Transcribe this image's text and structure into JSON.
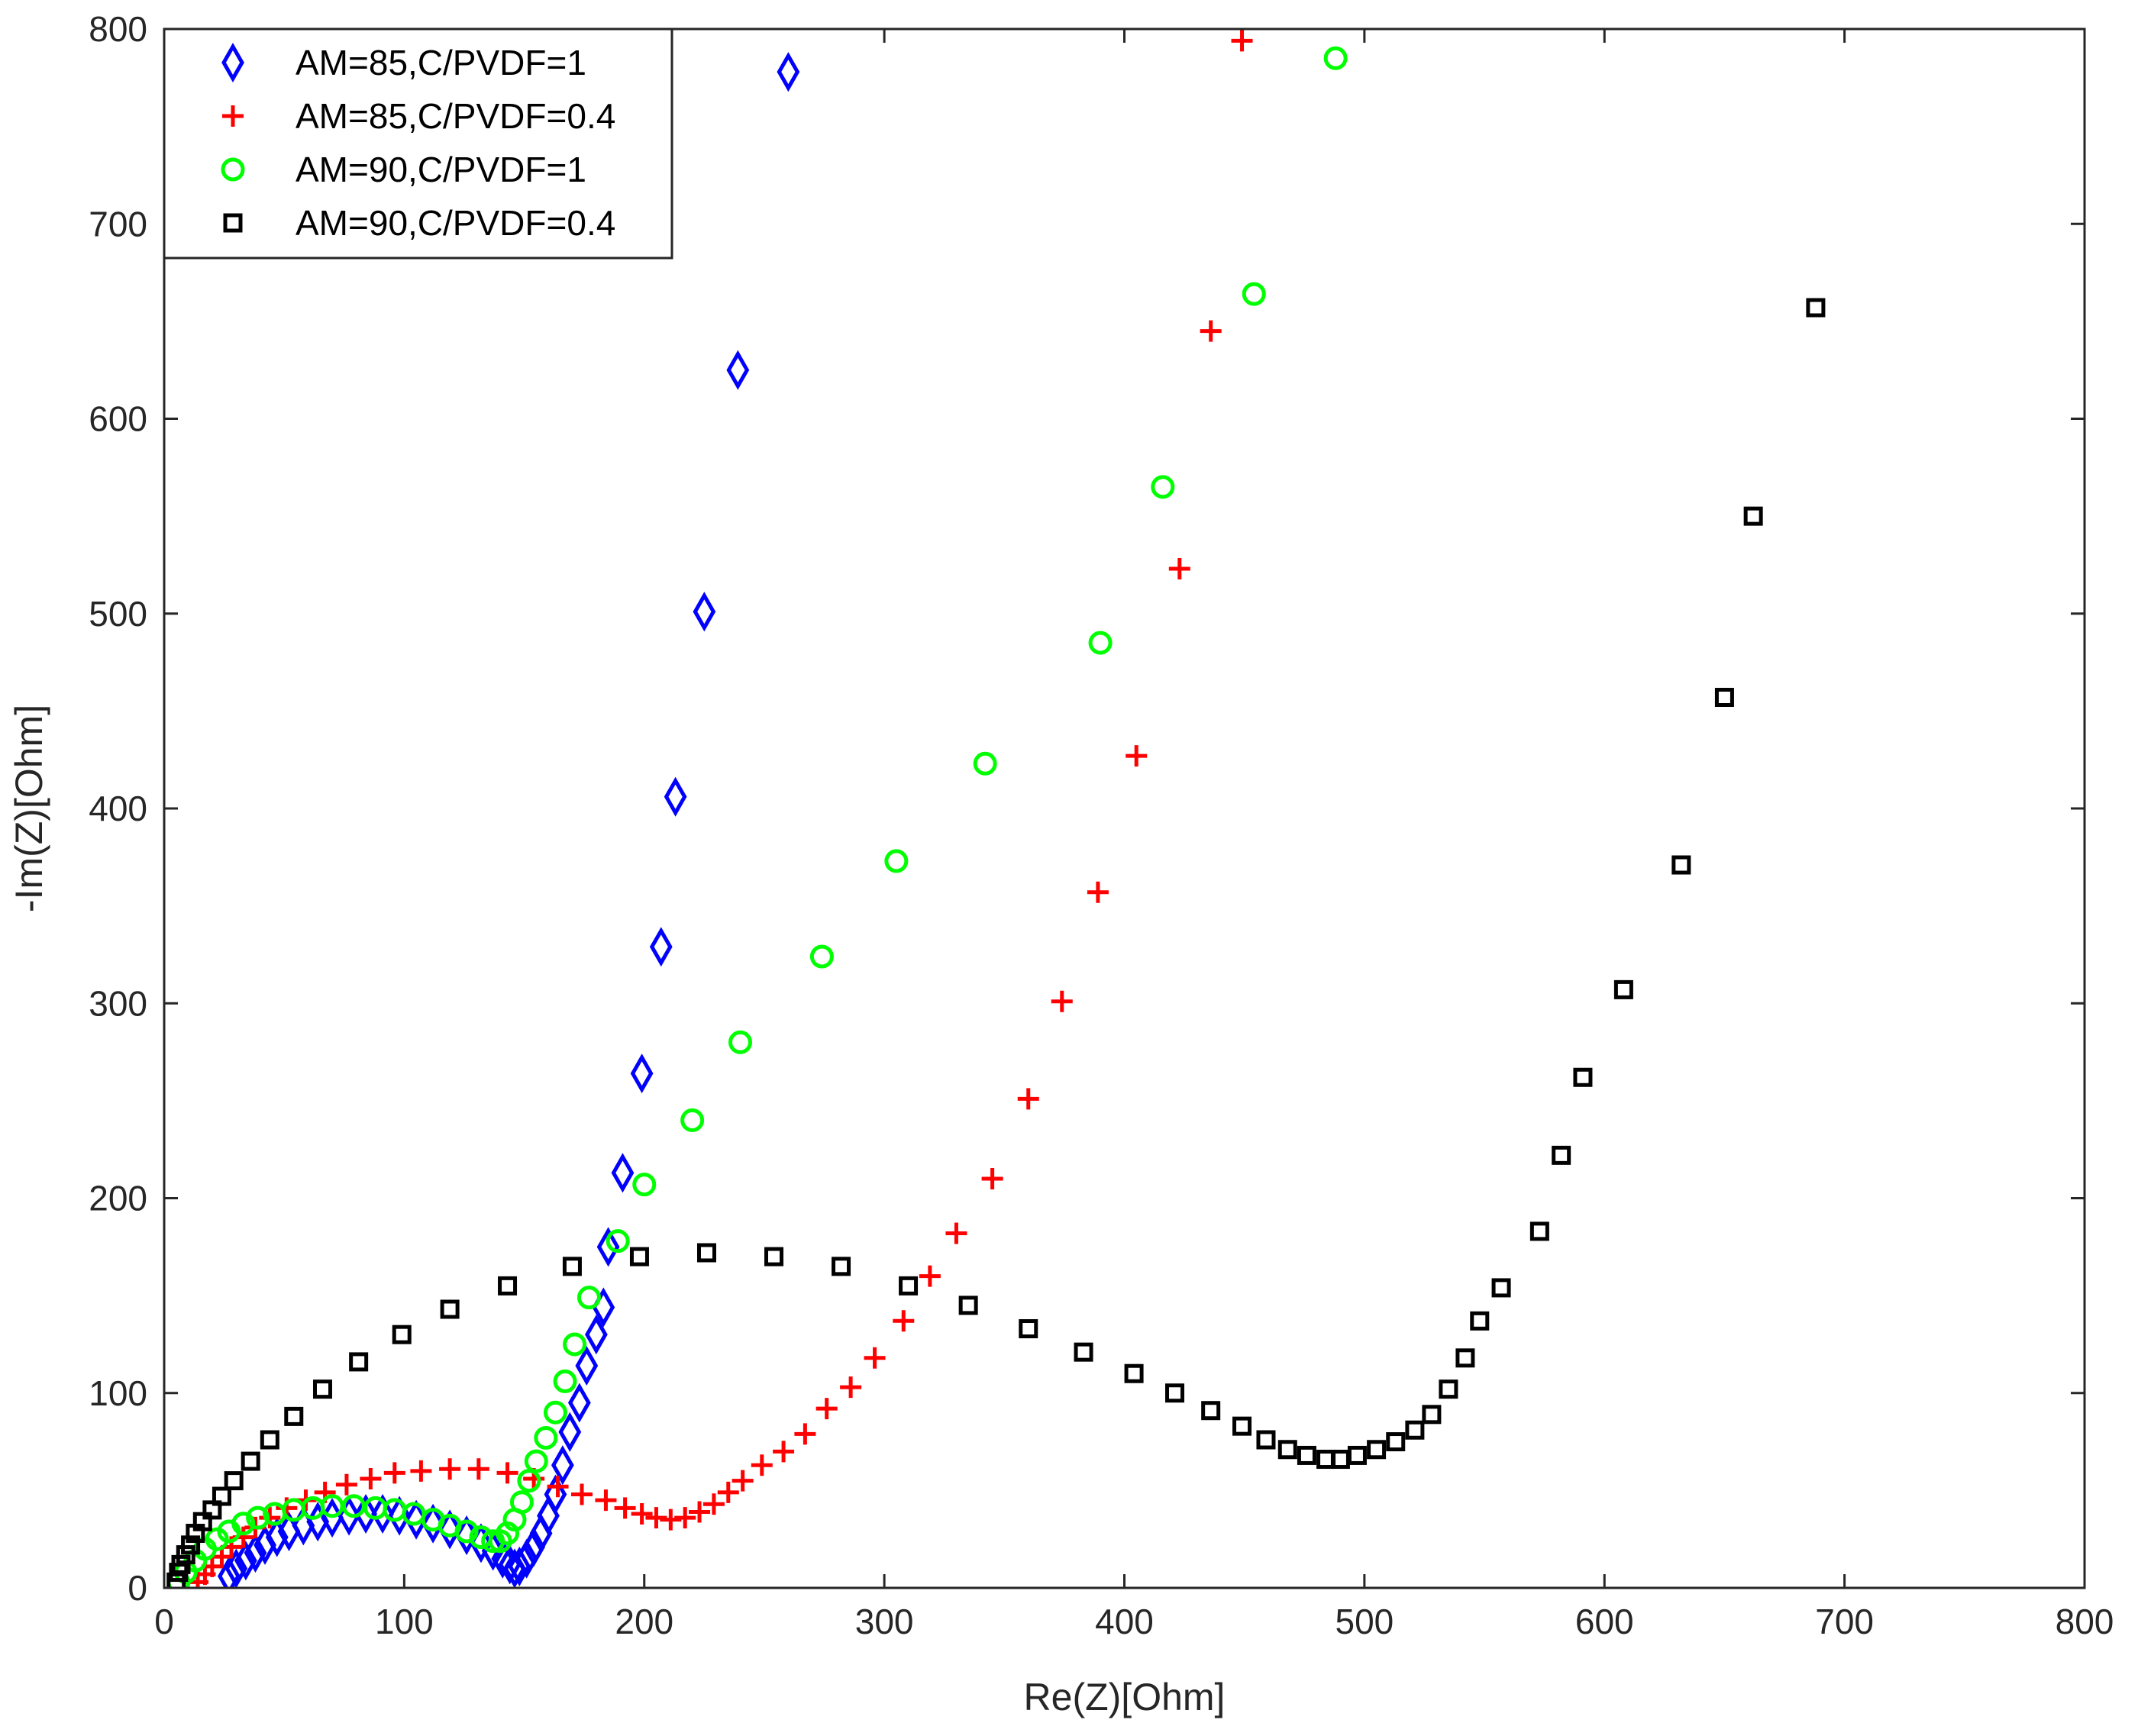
{
  "chart_data": {
    "type": "scatter",
    "title": "",
    "xlabel": "Re(Z)[Ohm]",
    "ylabel": "-Im(Z)[Ohm]",
    "xlim": [
      0,
      800
    ],
    "ylim": [
      0,
      800
    ],
    "xticks": [
      0,
      100,
      200,
      300,
      400,
      500,
      600,
      700,
      800
    ],
    "yticks": [
      0,
      100,
      200,
      300,
      400,
      500,
      600,
      700,
      800
    ],
    "xtick_labels": [
      "0",
      "100",
      "200",
      "300",
      "400",
      "500",
      "600",
      "700",
      "800"
    ],
    "ytick_labels": [
      "0",
      "100",
      "200",
      "300",
      "400",
      "500",
      "600",
      "700",
      "800"
    ],
    "grid": false,
    "legend_position": "top-left",
    "series": [
      {
        "name": "AM=85,C/PVDF=1",
        "marker": "diamond",
        "color": "#0000ff",
        "points": [
          [
            27,
            6
          ],
          [
            30,
            10
          ],
          [
            34,
            14
          ],
          [
            38,
            18
          ],
          [
            42,
            22
          ],
          [
            47,
            26
          ],
          [
            52,
            29
          ],
          [
            58,
            32
          ],
          [
            64,
            34
          ],
          [
            70,
            36
          ],
          [
            77,
            37
          ],
          [
            84,
            38
          ],
          [
            91,
            38
          ],
          [
            98,
            37
          ],
          [
            105,
            35
          ],
          [
            112,
            33
          ],
          [
            119,
            30
          ],
          [
            126,
            27
          ],
          [
            132,
            23
          ],
          [
            137,
            19
          ],
          [
            141,
            15
          ],
          [
            144,
            12
          ],
          [
            146,
            10
          ],
          [
            148,
            11
          ],
          [
            151,
            15
          ],
          [
            154,
            21
          ],
          [
            157,
            28
          ],
          [
            160,
            37
          ],
          [
            163,
            48
          ],
          [
            166,
            63
          ],
          [
            169,
            80
          ],
          [
            173,
            95
          ],
          [
            176,
            114
          ],
          [
            180,
            130
          ],
          [
            183,
            144
          ],
          [
            185,
            175
          ],
          [
            191,
            213
          ],
          [
            199,
            264
          ],
          [
            207,
            329
          ],
          [
            213,
            406
          ],
          [
            225,
            501
          ],
          [
            239,
            625
          ],
          [
            260,
            778
          ]
        ]
      },
      {
        "name": "AM=85,C/PVDF=0.4",
        "marker": "plus",
        "color": "#ff0000",
        "points": [
          [
            14,
            3
          ],
          [
            17,
            7
          ],
          [
            20,
            11
          ],
          [
            24,
            16
          ],
          [
            28,
            21
          ],
          [
            33,
            26
          ],
          [
            38,
            31
          ],
          [
            44,
            36
          ],
          [
            51,
            41
          ],
          [
            59,
            45
          ],
          [
            67,
            49
          ],
          [
            76,
            53
          ],
          [
            86,
            56
          ],
          [
            96,
            59
          ],
          [
            107,
            60
          ],
          [
            119,
            61
          ],
          [
            131,
            61
          ],
          [
            143,
            59
          ],
          [
            154,
            56
          ],
          [
            164,
            52
          ],
          [
            174,
            48
          ],
          [
            184,
            45
          ],
          [
            192,
            41
          ],
          [
            199,
            38
          ],
          [
            205,
            36
          ],
          [
            211,
            35
          ],
          [
            217,
            36
          ],
          [
            223,
            39
          ],
          [
            229,
            43
          ],
          [
            235,
            49
          ],
          [
            241,
            55
          ],
          [
            249,
            63
          ],
          [
            258,
            70
          ],
          [
            267,
            79
          ],
          [
            276,
            92
          ],
          [
            286,
            103
          ],
          [
            296,
            118
          ],
          [
            308,
            137
          ],
          [
            319,
            160
          ],
          [
            330,
            182
          ],
          [
            345,
            210
          ],
          [
            360,
            251
          ],
          [
            374,
            301
          ],
          [
            389,
            357
          ],
          [
            405,
            427
          ],
          [
            423,
            523
          ],
          [
            436,
            645
          ],
          [
            449,
            794
          ]
        ]
      },
      {
        "name": "AM=90,C/PVDF=1",
        "marker": "circle",
        "color": "#00ff00",
        "points": [
          [
            6,
            3
          ],
          [
            9,
            8
          ],
          [
            13,
            14
          ],
          [
            17,
            20
          ],
          [
            22,
            25
          ],
          [
            27,
            29
          ],
          [
            33,
            33
          ],
          [
            39,
            36
          ],
          [
            46,
            38
          ],
          [
            54,
            40
          ],
          [
            62,
            41
          ],
          [
            70,
            42
          ],
          [
            79,
            42
          ],
          [
            88,
            41
          ],
          [
            96,
            40
          ],
          [
            104,
            38
          ],
          [
            112,
            35
          ],
          [
            119,
            32
          ],
          [
            126,
            29
          ],
          [
            132,
            26
          ],
          [
            137,
            24
          ],
          [
            140,
            24
          ],
          [
            143,
            28
          ],
          [
            146,
            35
          ],
          [
            149,
            44
          ],
          [
            152,
            55
          ],
          [
            155,
            65
          ],
          [
            159,
            77
          ],
          [
            163,
            90
          ],
          [
            167,
            106
          ],
          [
            171,
            125
          ],
          [
            177,
            149
          ],
          [
            189,
            178
          ],
          [
            200,
            207
          ],
          [
            220,
            240
          ],
          [
            240,
            280
          ],
          [
            274,
            324
          ],
          [
            305,
            373
          ],
          [
            342,
            423
          ],
          [
            390,
            485
          ],
          [
            416,
            565
          ],
          [
            454,
            664
          ],
          [
            488,
            785
          ]
        ]
      },
      {
        "name": "AM=90,C/PVDF=0.4",
        "marker": "square",
        "color": "#000000",
        "points": [
          [
            5,
            3
          ],
          [
            6,
            8
          ],
          [
            7,
            12
          ],
          [
            9,
            17
          ],
          [
            11,
            22
          ],
          [
            13,
            28
          ],
          [
            16,
            34
          ],
          [
            20,
            40
          ],
          [
            24,
            47
          ],
          [
            29,
            55
          ],
          [
            36,
            65
          ],
          [
            44,
            76
          ],
          [
            54,
            88
          ],
          [
            66,
            102
          ],
          [
            81,
            116
          ],
          [
            99,
            130
          ],
          [
            119,
            143
          ],
          [
            143,
            155
          ],
          [
            170,
            165
          ],
          [
            198,
            170
          ],
          [
            226,
            172
          ],
          [
            254,
            170
          ],
          [
            282,
            165
          ],
          [
            310,
            155
          ],
          [
            335,
            145
          ],
          [
            360,
            133
          ],
          [
            383,
            121
          ],
          [
            404,
            110
          ],
          [
            421,
            100
          ],
          [
            436,
            91
          ],
          [
            449,
            83
          ],
          [
            459,
            76
          ],
          [
            468,
            71
          ],
          [
            476,
            68
          ],
          [
            484,
            66
          ],
          [
            490,
            66
          ],
          [
            497,
            68
          ],
          [
            505,
            71
          ],
          [
            513,
            75
          ],
          [
            521,
            81
          ],
          [
            528,
            89
          ],
          [
            535,
            102
          ],
          [
            542,
            118
          ],
          [
            548,
            137
          ],
          [
            557,
            154
          ],
          [
            573,
            183
          ],
          [
            582,
            222
          ],
          [
            591,
            262
          ],
          [
            608,
            307
          ],
          [
            632,
            371
          ],
          [
            650,
            457
          ],
          [
            662,
            550
          ],
          [
            688,
            657
          ]
        ]
      }
    ]
  }
}
